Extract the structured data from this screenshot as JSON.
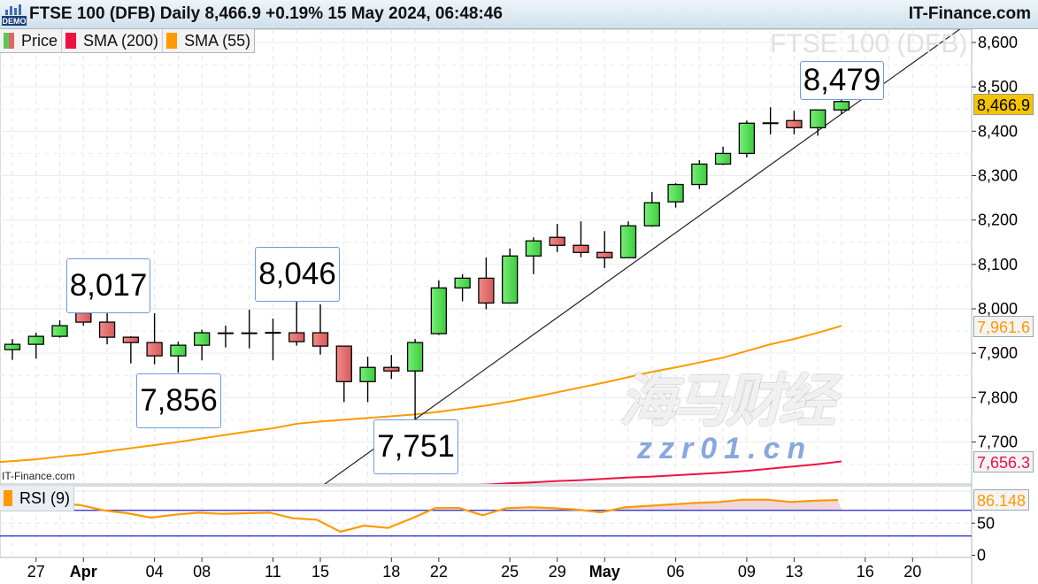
{
  "header": {
    "title": "FTSE 100 (DFB) Daily 8,466.9 +0.19% 15 May 2024, 06:48:46",
    "site": "IT-Finance.com",
    "demo_badge": "DEMO"
  },
  "legend": [
    {
      "label": "Price",
      "colors": [
        "#55cc55",
        "#e06666"
      ]
    },
    {
      "label": "SMA (200)",
      "colors": [
        "#ee1144"
      ]
    },
    {
      "label": "SMA (55)",
      "colors": [
        "#ff9900"
      ]
    }
  ],
  "watermark_title": "FTSE 100 (DFB)",
  "small_site": "IT-Finance.com",
  "rsi_legend": {
    "label": "RSI (9)",
    "color": "#ff9900"
  },
  "tags": {
    "last_price": "8,466.9",
    "sma55": "7,961.6",
    "sma200": "7,656.3",
    "rsi": "86.148"
  },
  "callouts": [
    {
      "text": "8,017"
    },
    {
      "text": "8,046"
    },
    {
      "text": "7,856"
    },
    {
      "text": "7,751"
    },
    {
      "text": "8,479"
    }
  ],
  "overlay_watermark": {
    "cn": "海马财经",
    "url": "zzr01.cn"
  },
  "colors": {
    "up": "#55dd55",
    "down": "#e57373",
    "sma55": "#ff9900",
    "sma200": "#ee1144",
    "rsi": "#ff9900",
    "rsi_bands": "#2222cc",
    "last_price_tag": "#f5c400"
  },
  "chart_data": [
    {
      "type": "candlestick",
      "title": "FTSE 100 (DFB) Daily",
      "ylim": [
        7600,
        8650
      ],
      "y_ticks": [
        "7,700",
        "7,800",
        "7,900",
        "8,000",
        "8,100",
        "8,200",
        "8,300",
        "8,400",
        "8,500",
        "8,600"
      ],
      "y_tick_values": [
        7700,
        7800,
        7900,
        8000,
        8100,
        8200,
        8300,
        8400,
        8500,
        8600
      ],
      "x_ticks": [
        {
          "label": "27",
          "slot": 1,
          "bold": false
        },
        {
          "label": "Apr",
          "slot": 3,
          "bold": true
        },
        {
          "label": "04",
          "slot": 6,
          "bold": false
        },
        {
          "label": "08",
          "slot": 8,
          "bold": false
        },
        {
          "label": "11",
          "slot": 11,
          "bold": false
        },
        {
          "label": "15",
          "slot": 13,
          "bold": false
        },
        {
          "label": "18",
          "slot": 16,
          "bold": false
        },
        {
          "label": "22",
          "slot": 18,
          "bold": false
        },
        {
          "label": "25",
          "slot": 21,
          "bold": false
        },
        {
          "label": "29",
          "slot": 23,
          "bold": false
        },
        {
          "label": "May",
          "slot": 25,
          "bold": true
        },
        {
          "label": "06",
          "slot": 28,
          "bold": false
        },
        {
          "label": "09",
          "slot": 31,
          "bold": false
        },
        {
          "label": "13",
          "slot": 33,
          "bold": false
        },
        {
          "label": "16",
          "slot": 36,
          "bold": false
        },
        {
          "label": "20",
          "slot": 38,
          "bold": false
        }
      ],
      "dates": [
        "26 Mar",
        "27 Mar",
        "28 Mar",
        "1 Apr",
        "2 Apr",
        "3 Apr",
        "4 Apr",
        "5 Apr",
        "8 Apr",
        "9 Apr",
        "10 Apr",
        "11 Apr",
        "12 Apr",
        "15 Apr",
        "16 Apr",
        "17 Apr",
        "18 Apr",
        "19 Apr",
        "22 Apr",
        "23 Apr",
        "24 Apr",
        "25 Apr",
        "26 Apr",
        "29 Apr",
        "30 Apr",
        "1 May",
        "2 May",
        "3 May",
        "6 May",
        "7 May",
        "8 May",
        "9 May",
        "10 May",
        "13 May",
        "14 May",
        "15 May"
      ],
      "ohlc": [
        [
          7908,
          7932,
          7885,
          7920
        ],
        [
          7920,
          7946,
          7888,
          7938
        ],
        [
          7938,
          7974,
          7935,
          7962
        ],
        [
          7991,
          8003,
          7962,
          7970
        ],
        [
          7970,
          8017,
          7920,
          7936
        ],
        [
          7936,
          7938,
          7877,
          7924
        ],
        [
          7924,
          7990,
          7875,
          7894
        ],
        [
          7894,
          7926,
          7856,
          7918
        ],
        [
          7918,
          7953,
          7884,
          7946
        ],
        [
          7945,
          7962,
          7913,
          7945
        ],
        [
          7945,
          7998,
          7911,
          7945
        ],
        [
          7946,
          7978,
          7884,
          7946
        ],
        [
          7946,
          8046,
          7917,
          7926
        ],
        [
          7946,
          8010,
          7897,
          7916
        ],
        [
          7916,
          7916,
          7790,
          7836
        ],
        [
          7836,
          7892,
          7790,
          7868
        ],
        [
          7868,
          7896,
          7842,
          7860
        ],
        [
          7860,
          7932,
          7751,
          7924
        ],
        [
          7944,
          8064,
          7941,
          8047
        ],
        [
          8047,
          8078,
          8017,
          8069
        ],
        [
          8069,
          8116,
          7999,
          8013
        ],
        [
          8013,
          8136,
          8013,
          8119
        ],
        [
          8119,
          8161,
          8078,
          8153
        ],
        [
          8161,
          8191,
          8128,
          8143
        ],
        [
          8143,
          8197,
          8116,
          8127
        ],
        [
          8127,
          8175,
          8092,
          8115
        ],
        [
          8115,
          8197,
          8115,
          8187
        ],
        [
          8187,
          8263,
          8185,
          8239
        ],
        [
          8241,
          8283,
          8228,
          8280
        ],
        [
          8280,
          8335,
          8270,
          8326
        ],
        [
          8326,
          8365,
          8324,
          8350
        ],
        [
          8350,
          8424,
          8341,
          8418
        ],
        [
          8418,
          8454,
          8393,
          8418
        ],
        [
          8424,
          8446,
          8393,
          8408
        ],
        [
          8408,
          8448,
          8390,
          8448
        ],
        [
          8448,
          8479,
          8439,
          8466.9
        ]
      ],
      "sma55": [
        7657,
        7661,
        7667,
        7672,
        7679,
        7686,
        7693,
        7700,
        7708,
        7716,
        7724,
        7731,
        7741,
        7746,
        7750,
        7754,
        7758,
        7762,
        7768,
        7775,
        7782,
        7791,
        7801,
        7812,
        7823,
        7834,
        7846,
        7858,
        7868,
        7879,
        7890,
        7905,
        7920,
        7932,
        7946,
        7961.6
      ],
      "sma200": [
        null,
        null,
        null,
        null,
        null,
        null,
        null,
        null,
        null,
        null,
        null,
        null,
        null,
        null,
        null,
        null,
        null,
        null,
        null,
        7602,
        7604,
        7607,
        7609,
        7612,
        7614,
        7617,
        7620,
        7622,
        7625,
        7628,
        7631,
        7635,
        7640,
        7645,
        7650,
        7656.3
      ],
      "trendline": [
        {
          "date": "19 Apr",
          "price": 7751
        },
        {
          "date": "15 May",
          "price": 8439
        }
      ],
      "annotations": [
        {
          "text": "8,017",
          "date": "2 Apr",
          "price": 8017,
          "position": "above"
        },
        {
          "text": "8,046",
          "date": "12 Apr",
          "price": 8046,
          "position": "above"
        },
        {
          "text": "7,856",
          "date": "5 Apr",
          "price": 7856,
          "position": "below"
        },
        {
          "text": "7,751",
          "date": "19 Apr",
          "price": 7751,
          "position": "below"
        },
        {
          "text": "8,479",
          "date": "15 May",
          "price": 8479,
          "position": "above"
        }
      ]
    },
    {
      "type": "line",
      "title": "RSI (9)",
      "ylim": [
        0,
        100
      ],
      "y_ticks": [
        "0",
        "50"
      ],
      "bands": [
        30,
        70
      ],
      "values": [
        null,
        null,
        80,
        78.3,
        70,
        65.5,
        58.6,
        63.2,
        66.4,
        64.6,
        65.5,
        66.4,
        57.7,
        55.4,
        36.6,
        46.2,
        42.5,
        57.2,
        73.4,
        73.7,
        62.3,
        73.4,
        74.7,
        73.4,
        71,
        66.9,
        74.7,
        77,
        79.3,
        81.6,
        83,
        86.6,
        86.6,
        83,
        85,
        86.148
      ]
    }
  ]
}
